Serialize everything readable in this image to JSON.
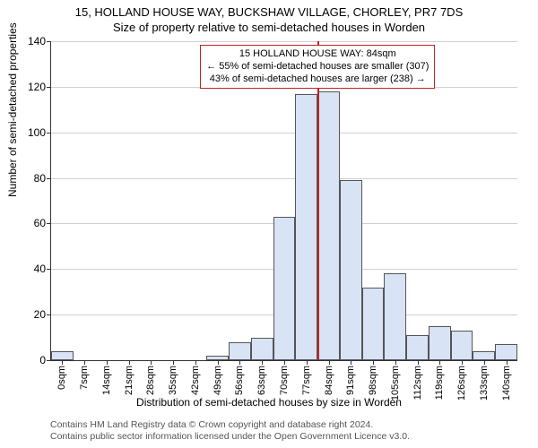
{
  "title_line1": "15, HOLLAND HOUSE WAY, BUCKSHAW VILLAGE, CHORLEY, PR7 7DS",
  "title_line2": "Size of property relative to semi-detached houses in Worden",
  "chart": {
    "type": "histogram",
    "yaxis_label": "Number of semi-detached properties",
    "xaxis_label": "Distribution of semi-detached houses by size in Worden",
    "ylim": [
      0,
      140
    ],
    "ytick_step": 20,
    "yticks": [
      0,
      20,
      40,
      60,
      80,
      100,
      120,
      140
    ],
    "x_categories": [
      "0sqm",
      "7sqm",
      "14sqm",
      "21sqm",
      "28sqm",
      "35sqm",
      "42sqm",
      "49sqm",
      "56sqm",
      "63sqm",
      "70sqm",
      "77sqm",
      "84sqm",
      "91sqm",
      "98sqm",
      "105sqm",
      "112sqm",
      "119sqm",
      "126sqm",
      "133sqm",
      "140sqm"
    ],
    "values": [
      4,
      0,
      0,
      0,
      0,
      0,
      0,
      2,
      8,
      10,
      63,
      117,
      118,
      79,
      32,
      38,
      11,
      15,
      13,
      4,
      7
    ],
    "bar_color": "#d8e3f5",
    "bar_border": "#555555",
    "grid_color": "#d0d0d0",
    "background_color": "#ffffff",
    "bar_width_ratio": 1.0,
    "marker_line_x_index": 12,
    "marker_line_color": "#c42222"
  },
  "info_box": {
    "line1": "15 HOLLAND HOUSE WAY: 84sqm",
    "line2": "← 55% of semi-detached houses are smaller (307)",
    "line3": "43% of semi-detached houses are larger (238) →",
    "border_color": "#c42222"
  },
  "attribution": {
    "line1": "Contains HM Land Registry data © Crown copyright and database right 2024.",
    "line2": "Contains public sector information licensed under the Open Government Licence v3.0."
  }
}
